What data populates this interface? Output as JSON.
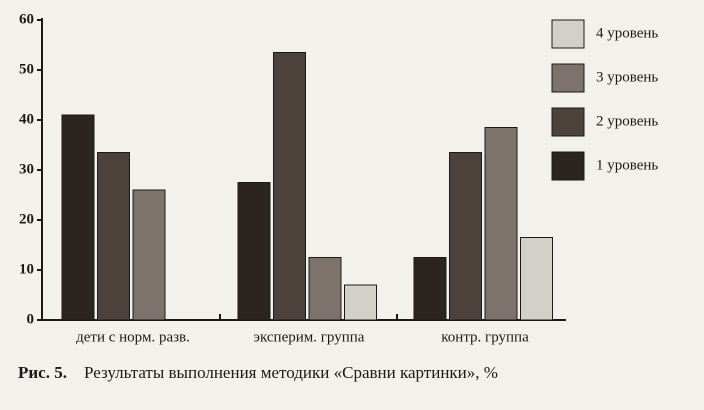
{
  "chart_data": {
    "type": "bar",
    "caption_label": "Рис. 5.",
    "caption": "Результаты выполнения методики «Сравни картинки», %",
    "categories": [
      "дети с норм. разв.",
      "эксперим. группа",
      "контр. группа"
    ],
    "series": [
      {
        "name": "1 уровень",
        "color": "#2b2420",
        "values": [
          41,
          27.5,
          12.5
        ]
      },
      {
        "name": "2 уровень",
        "color": "#4d413b",
        "values": [
          33.5,
          53.5,
          33.5
        ]
      },
      {
        "name": "3 уровень",
        "color": "#7d726c",
        "values": [
          26,
          12.5,
          38.5
        ]
      },
      {
        "name": "4 уровень",
        "color": "#d3cfc9",
        "values": [
          null,
          7,
          16.5
        ]
      }
    ],
    "ylim": [
      0,
      60
    ],
    "yticks": [
      0,
      10,
      20,
      30,
      40,
      50,
      60
    ],
    "legend": "right"
  }
}
